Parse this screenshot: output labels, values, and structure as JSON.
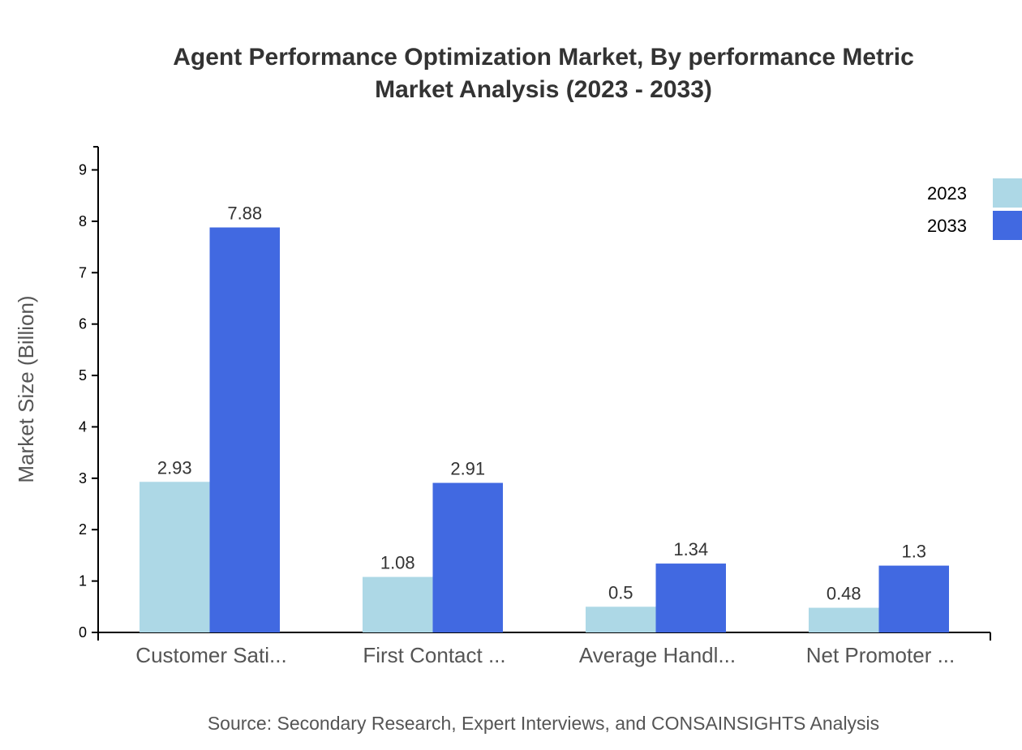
{
  "chart_data": {
    "type": "bar",
    "title": [
      "Agent Performance Optimization Market, By performance Metric",
      "Market Analysis (2023 - 2033)"
    ],
    "ylabel": "Market Size (Billion)",
    "xlabel": "",
    "categories": [
      "Customer Sati...",
      "First Contact ...",
      "Average Handl...",
      "Net Promoter ..."
    ],
    "series": [
      {
        "name": "2023",
        "color": "#add8e6",
        "values": [
          2.93,
          1.08,
          0.5,
          0.48
        ]
      },
      {
        "name": "2033",
        "color": "#4169e1",
        "values": [
          7.88,
          2.91,
          1.34,
          1.3
        ]
      }
    ],
    "yticks": [
      0,
      1,
      2,
      3,
      4,
      5,
      6,
      7,
      8,
      9
    ],
    "ylim": [
      0,
      9.45
    ],
    "grid": false,
    "legend": "top-right",
    "source": "Source: Secondary Research, Expert Interviews, and CONSAINSIGHTS Analysis"
  }
}
